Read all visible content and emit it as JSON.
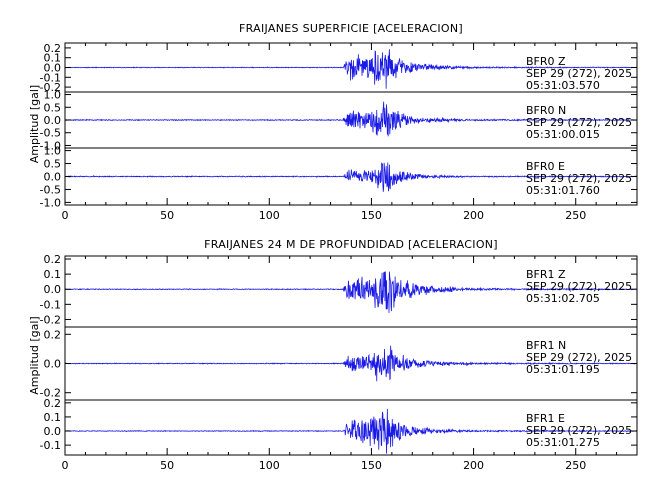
{
  "colors": {
    "trace": "#1a1ae6",
    "axes": "#000000",
    "background": "#ffffff"
  },
  "chart_data": [
    {
      "type": "line",
      "title": "FRAIJANES SUPERFICIE [ACELERACION]",
      "ylabel": "Amplitud [gal]",
      "xlim": [
        0,
        280
      ],
      "xticks": [
        0,
        50,
        100,
        150,
        200,
        250
      ],
      "grid": false,
      "series": [
        {
          "station": "BFR0",
          "component": "Z",
          "date": "SEP 29 (272), 2025",
          "time": "05:31:03.570",
          "ylim": [
            -0.25,
            0.25
          ],
          "yticks": [
            -0.2,
            -0.1,
            0.0,
            0.1,
            0.2
          ],
          "x": [
            0,
            136,
            139,
            143,
            147,
            150,
            153,
            155,
            157,
            158,
            160,
            163,
            166,
            170,
            175,
            180,
            190,
            200,
            280
          ],
          "envelope": [
            0.004,
            0.004,
            0.15,
            0.13,
            0.12,
            0.12,
            0.22,
            0.16,
            0.26,
            0.25,
            0.16,
            0.12,
            0.08,
            0.06,
            0.045,
            0.03,
            0.016,
            0.008,
            0.004
          ],
          "seed": 11
        },
        {
          "station": "BFR0",
          "component": "N",
          "date": "SEP 29 (272), 2025",
          "time": "05:31:00.015",
          "ylim": [
            -1.1,
            1.1
          ],
          "yticks": [
            -1.0,
            -0.5,
            0.0,
            0.5,
            1.0
          ],
          "x": [
            0,
            136,
            139,
            143,
            147,
            150,
            153,
            155,
            157,
            158,
            160,
            163,
            166,
            170,
            175,
            180,
            190,
            200,
            280
          ],
          "envelope": [
            0.02,
            0.02,
            0.45,
            0.4,
            0.35,
            0.4,
            0.85,
            0.7,
            1.05,
            0.95,
            0.65,
            0.45,
            0.3,
            0.22,
            0.16,
            0.12,
            0.06,
            0.03,
            0.02
          ],
          "seed": 23
        },
        {
          "station": "BFR0",
          "component": "E",
          "date": "SEP 29 (272), 2025",
          "time": "05:31:01.760",
          "ylim": [
            -1.1,
            1.1
          ],
          "yticks": [
            -1.0,
            -0.5,
            0.0,
            0.5,
            1.0
          ],
          "x": [
            0,
            136,
            139,
            143,
            147,
            150,
            153,
            155,
            157,
            158,
            160,
            163,
            166,
            170,
            175,
            180,
            190,
            200,
            280
          ],
          "envelope": [
            0.02,
            0.02,
            0.3,
            0.25,
            0.25,
            0.3,
            0.55,
            0.5,
            0.9,
            0.8,
            0.45,
            0.35,
            0.22,
            0.15,
            0.1,
            0.07,
            0.04,
            0.025,
            0.02
          ],
          "seed": 37
        }
      ]
    },
    {
      "type": "line",
      "title": "FRAIJANES 24 M DE PROFUNDIDAD [ACELERACION]",
      "ylabel": "Amplitud [gal]",
      "xlim": [
        0,
        280
      ],
      "xticks": [
        0,
        50,
        100,
        150,
        200,
        250
      ],
      "grid": false,
      "series": [
        {
          "station": "BFR1",
          "component": "Z",
          "date": "SEP 29 (272), 2025",
          "time": "05:31:02.705",
          "ylim": [
            -0.25,
            0.22
          ],
          "yticks": [
            -0.2,
            -0.1,
            0.0,
            0.1,
            0.2
          ],
          "x": [
            0,
            136,
            139,
            143,
            147,
            150,
            153,
            155,
            157,
            158,
            160,
            163,
            166,
            170,
            175,
            180,
            190,
            200,
            280
          ],
          "envelope": [
            0.003,
            0.003,
            0.09,
            0.09,
            0.1,
            0.11,
            0.14,
            0.14,
            0.24,
            0.2,
            0.15,
            0.1,
            0.08,
            0.06,
            0.04,
            0.03,
            0.015,
            0.008,
            0.003
          ],
          "seed": 53
        },
        {
          "station": "BFR1",
          "component": "N",
          "date": "SEP 29 (272), 2025",
          "time": "05:31:01.195",
          "ylim": [
            -0.25,
            0.25
          ],
          "yticks": [
            -0.2,
            0.0,
            0.2
          ],
          "x": [
            0,
            136,
            139,
            143,
            147,
            150,
            153,
            155,
            157,
            158,
            160,
            163,
            166,
            170,
            175,
            180,
            190,
            200,
            280
          ],
          "envelope": [
            0.003,
            0.003,
            0.06,
            0.06,
            0.07,
            0.08,
            0.12,
            0.13,
            0.22,
            0.18,
            0.12,
            0.08,
            0.06,
            0.045,
            0.03,
            0.02,
            0.012,
            0.006,
            0.003
          ],
          "seed": 71
        },
        {
          "station": "BFR1",
          "component": "E",
          "date": "SEP 29 (272), 2025",
          "time": "05:31:01.275",
          "ylim": [
            -0.17,
            0.22
          ],
          "yticks": [
            -0.1,
            0.0,
            0.1,
            0.2
          ],
          "x": [
            0,
            136,
            139,
            143,
            147,
            150,
            153,
            155,
            157,
            158,
            160,
            163,
            166,
            170,
            175,
            180,
            190,
            200,
            280
          ],
          "envelope": [
            0.003,
            0.003,
            0.1,
            0.1,
            0.09,
            0.1,
            0.14,
            0.15,
            0.2,
            0.18,
            0.12,
            0.08,
            0.06,
            0.04,
            0.03,
            0.02,
            0.01,
            0.006,
            0.003
          ],
          "seed": 89
        }
      ]
    }
  ]
}
